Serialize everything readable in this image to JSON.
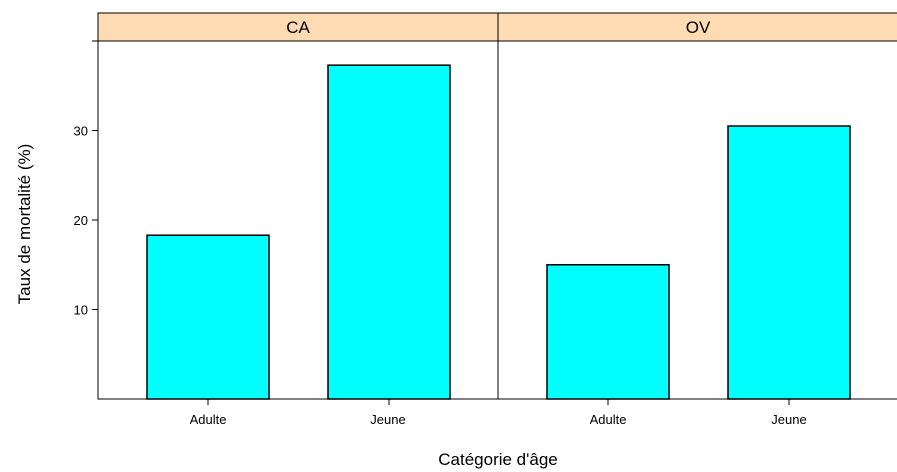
{
  "chart_data": {
    "type": "bar",
    "xlabel": "Catégorie d'âge",
    "ylabel": "Taux de mortalité (%)",
    "ylim": [
      0,
      40
    ],
    "yticks": [
      10,
      20,
      30
    ],
    "categories": [
      "Adulte",
      "Jeune"
    ],
    "bar_color": "#00ffff",
    "strip_color": "#ffdbb3",
    "panels": [
      {
        "name": "CA",
        "values": [
          18.3,
          37.3
        ]
      },
      {
        "name": "OV",
        "values": [
          15.0,
          30.5
        ]
      }
    ]
  }
}
